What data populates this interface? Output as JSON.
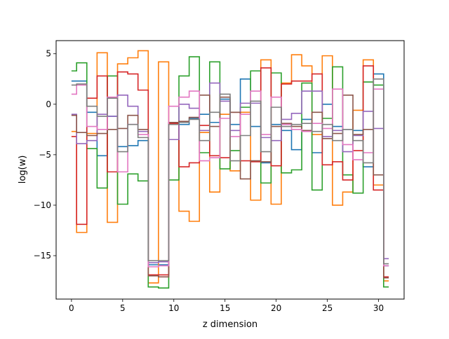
{
  "chart_data": {
    "type": "step",
    "title": "",
    "xlabel": "z dimension",
    "ylabel": "log(w)",
    "xlim": [
      -1.5,
      32.5
    ],
    "ylim": [
      -19.3,
      6.3
    ],
    "xticks": [
      0,
      5,
      10,
      15,
      20,
      25,
      30
    ],
    "yticks": [
      5,
      0,
      -5,
      -10,
      -15
    ],
    "ytick_labels": [
      "5",
      "0",
      "−5",
      "−10",
      "−15"
    ],
    "grid": false,
    "legend": "none",
    "step_where": "mid",
    "x": [
      0,
      1,
      2,
      3,
      4,
      5,
      6,
      7,
      8,
      9,
      10,
      11,
      12,
      13,
      14,
      15,
      16,
      17,
      18,
      19,
      20,
      21,
      22,
      23,
      24,
      25,
      26,
      27,
      28,
      29,
      30,
      31
    ],
    "series": [
      {
        "color": "#1f77b4",
        "values": [
          2.3,
          2.3,
          -0.8,
          -5.1,
          -1.2,
          -4.2,
          -4.1,
          -3.6,
          -15.9,
          -15.9,
          -1.8,
          -2.0,
          -1.4,
          -1.0,
          -1.8,
          0.5,
          -2.0,
          2.5,
          -2.2,
          -5.8,
          -2.0,
          -2.6,
          -4.5,
          -1.5,
          -4.8,
          0.0,
          -2.2,
          -2.5,
          -2.6,
          -6.2,
          3.0,
          -16.0
        ]
      },
      {
        "color": "#ff7f0e",
        "values": [
          -2.7,
          -12.7,
          -2.9,
          5.1,
          -11.7,
          4.0,
          4.6,
          5.3,
          -17.7,
          4.2,
          -2.0,
          -10.6,
          -11.6,
          -2.8,
          -8.7,
          -1.0,
          -6.6,
          -0.8,
          -9.5,
          4.4,
          -9.9,
          2.1,
          4.9,
          3.8,
          -3.0,
          4.8,
          -10.0,
          -8.7,
          -0.6,
          4.4,
          -8.0,
          -17.5
        ]
      },
      {
        "color": "#2ca02c",
        "values": [
          3.3,
          4.1,
          -4.4,
          -8.3,
          2.8,
          -9.9,
          -6.9,
          -7.6,
          -18.1,
          -18.2,
          -7.5,
          2.8,
          4.7,
          -4.8,
          4.2,
          -6.4,
          -4.6,
          -0.3,
          3.3,
          -7.8,
          3.1,
          -6.8,
          -6.5,
          2.1,
          -8.5,
          -1.4,
          3.7,
          -7.0,
          -8.8,
          2.2,
          1.9,
          -18.1
        ]
      },
      {
        "color": "#d62728",
        "values": [
          -3.2,
          -11.9,
          0.6,
          2.8,
          -6.7,
          3.2,
          3.0,
          1.4,
          -16.9,
          -16.9,
          -1.9,
          -6.2,
          -5.8,
          -2.1,
          -5.1,
          -5.3,
          -0.8,
          -5.6,
          -5.7,
          3.6,
          -6.1,
          2.0,
          2.3,
          2.3,
          3.0,
          -6.0,
          -5.7,
          -7.5,
          -4.6,
          3.8,
          -8.5,
          -17.1
        ]
      },
      {
        "color": "#9467bd",
        "values": [
          -1.0,
          -3.9,
          -3.6,
          -1.0,
          -1.2,
          0.9,
          -0.2,
          -2.7,
          -15.7,
          -15.6,
          -3.5,
          0.0,
          -0.4,
          -2.6,
          2.1,
          0.3,
          -2.6,
          0.1,
          0.1,
          -3.3,
          -3.6,
          -1.5,
          -0.9,
          1.3,
          1.3,
          -3.2,
          -2.6,
          -4.7,
          -3.1,
          -0.7,
          -2.4,
          -15.3
        ]
      },
      {
        "color": "#8c564b",
        "values": [
          -1.1,
          -2.8,
          -3.1,
          -2.9,
          -2.5,
          -2.4,
          -1.1,
          -2.5,
          -17.0,
          -17.1,
          -1.8,
          -1.7,
          -1.3,
          0.9,
          -2.2,
          0.7,
          -0.8,
          -7.4,
          -5.6,
          -5.7,
          -2.2,
          -1.9,
          -2.2,
          -2.6,
          -0.8,
          -3.4,
          -2.9,
          0.9,
          -3.0,
          -2.5,
          -7.0,
          -17.2
        ]
      },
      {
        "color": "#e377c2",
        "values": [
          1.0,
          1.9,
          -2.2,
          -2.5,
          0.7,
          -6.7,
          -2.0,
          -3.0,
          -16.1,
          -16.0,
          -0.2,
          0.7,
          1.3,
          -5.6,
          -5.3,
          -1.4,
          -3.2,
          -1.0,
          1.3,
          -3.0,
          0.7,
          -2.0,
          -2.5,
          -2.7,
          -1.9,
          -2.4,
          1.5,
          -4.0,
          -5.5,
          -4.8,
          1.5,
          -16.0
        ]
      },
      {
        "color": "#7f7f7f",
        "values": [
          1.9,
          2.0,
          -0.2,
          -1.2,
          0.6,
          -4.7,
          -2.0,
          -3.3,
          -15.5,
          -15.5,
          -2.0,
          -1.8,
          -1.5,
          -3.6,
          -0.8,
          1.0,
          -5.6,
          -3.1,
          0.3,
          -4.7,
          -0.3,
          -2.2,
          -2.0,
          -1.9,
          -2.7,
          -2.0,
          -3.6,
          -2.5,
          -3.6,
          -5.8,
          2.5,
          -15.8
        ]
      }
    ]
  }
}
